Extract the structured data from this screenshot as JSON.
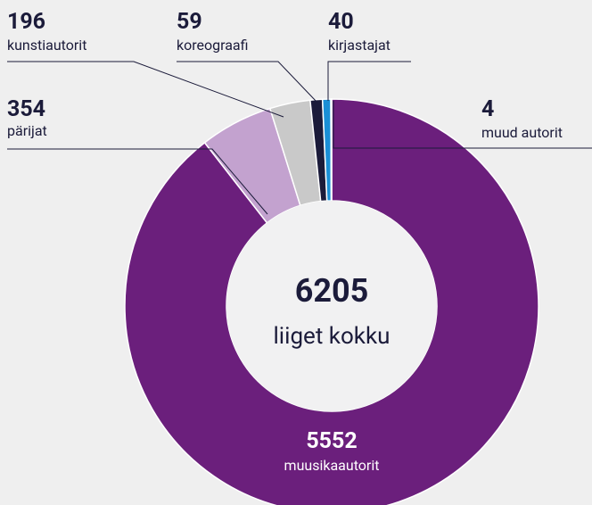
{
  "chart_data": {
    "type": "pie",
    "donut": true,
    "categories": [
      "muusikaautorit",
      "pärijat",
      "kunstiautorit",
      "koreograafi",
      "kirjastajat",
      "muud autorit"
    ],
    "values": [
      5552,
      354,
      196,
      59,
      40,
      4
    ],
    "colors": [
      "#6b1f7c",
      "#c3a2cf",
      "#c9c9c9",
      "#1b1b3a",
      "#1a8fd6",
      "#ffffff"
    ],
    "total": 6205,
    "total_label": "liiget kokku"
  }
}
